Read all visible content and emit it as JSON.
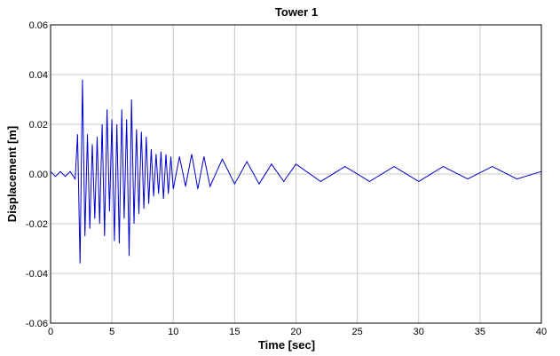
{
  "chart_data": {
    "type": "line",
    "title": "Tower 1",
    "xlabel": "Time [sec]",
    "ylabel": "Displacement [m]",
    "xlim": [
      0,
      40
    ],
    "ylim": [
      -0.06,
      0.06
    ],
    "grid": true,
    "x_ticks": [
      "0",
      "5",
      "10",
      "15",
      "20",
      "25",
      "30",
      "35",
      "40"
    ],
    "y_ticks": [
      "0.06",
      "0.04",
      "0.02",
      "0.00",
      "-0.02",
      "-0.04",
      "-0.06"
    ],
    "x_tick_values": [
      0,
      5,
      10,
      15,
      20,
      25,
      30,
      35,
      40
    ],
    "y_tick_values": [
      0.06,
      0.04,
      0.02,
      0.0,
      -0.02,
      -0.04,
      -0.06
    ],
    "series": [
      {
        "color": "#0000cc",
        "x": [
          0.0,
          0.4,
          0.8,
          1.2,
          1.6,
          2.0,
          2.2,
          2.4,
          2.6,
          2.8,
          3.0,
          3.2,
          3.4,
          3.6,
          3.8,
          4.0,
          4.2,
          4.4,
          4.6,
          4.8,
          5.0,
          5.2,
          5.4,
          5.6,
          5.8,
          6.0,
          6.2,
          6.4,
          6.6,
          6.8,
          7.0,
          7.2,
          7.4,
          7.6,
          7.8,
          8.0,
          8.2,
          8.4,
          8.6,
          8.8,
          9.0,
          9.2,
          9.4,
          9.6,
          9.8,
          10.0,
          10.5,
          11.0,
          11.5,
          12.0,
          12.5,
          13.0,
          14.0,
          15.0,
          16.0,
          17.0,
          18.0,
          19.0,
          20.0,
          22.0,
          24.0,
          26.0,
          28.0,
          30.0,
          32.0,
          34.0,
          36.0,
          38.0,
          40.0
        ],
        "y": [
          0.001,
          -0.001,
          0.001,
          -0.001,
          0.001,
          -0.002,
          0.016,
          -0.036,
          0.038,
          -0.025,
          0.016,
          -0.022,
          0.012,
          -0.018,
          0.015,
          -0.02,
          0.02,
          -0.025,
          0.026,
          -0.015,
          0.022,
          -0.027,
          0.02,
          -0.028,
          0.026,
          -0.018,
          0.022,
          -0.033,
          0.03,
          -0.02,
          0.018,
          -0.016,
          0.017,
          -0.014,
          0.015,
          -0.012,
          0.01,
          -0.009,
          0.008,
          -0.008,
          0.009,
          -0.01,
          0.008,
          -0.008,
          0.007,
          -0.006,
          0.007,
          -0.005,
          0.008,
          -0.006,
          0.007,
          -0.005,
          0.006,
          -0.004,
          0.005,
          -0.004,
          0.004,
          -0.003,
          0.004,
          -0.003,
          0.003,
          -0.003,
          0.003,
          -0.003,
          0.003,
          -0.002,
          0.003,
          -0.002,
          0.001
        ]
      }
    ]
  }
}
